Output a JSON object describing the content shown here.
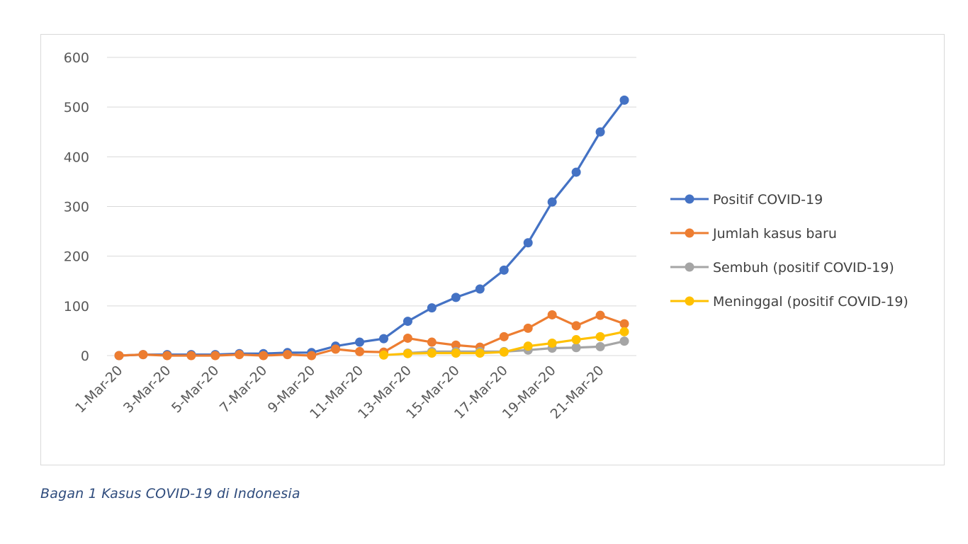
{
  "caption": "Bagan 1 Kasus COVID-19 di Indonesia",
  "chart_data": {
    "type": "line",
    "title": "",
    "xlabel": "",
    "ylabel": "",
    "ylim": [
      0,
      600
    ],
    "yticks": [
      0,
      100,
      200,
      300,
      400,
      500,
      600
    ],
    "grid": true,
    "legend_position": "right",
    "categories": [
      "1-Mar-20",
      "2-Mar-20",
      "3-Mar-20",
      "4-Mar-20",
      "5-Mar-20",
      "6-Mar-20",
      "7-Mar-20",
      "8-Mar-20",
      "9-Mar-20",
      "10-Mar-20",
      "11-Mar-20",
      "12-Mar-20",
      "13-Mar-20",
      "14-Mar-20",
      "15-Mar-20",
      "16-Mar-20",
      "17-Mar-20",
      "18-Mar-20",
      "19-Mar-20",
      "20-Mar-20",
      "21-Mar-20",
      "22-Mar-20"
    ],
    "tick_labels": [
      "1-Mar-20",
      "3-Mar-20",
      "5-Mar-20",
      "7-Mar-20",
      "9-Mar-20",
      "11-Mar-20",
      "13-Mar-20",
      "15-Mar-20",
      "17-Mar-20",
      "19-Mar-20",
      "21-Mar-20"
    ],
    "series": [
      {
        "name": "Positif COVID-19",
        "color": "#4472c4",
        "values": [
          0,
          2,
          2,
          2,
          2,
          4,
          4,
          6,
          6,
          19,
          27,
          34,
          69,
          96,
          117,
          134,
          172,
          227,
          309,
          369,
          450,
          514
        ]
      },
      {
        "name": "Jumlah kasus baru",
        "color": "#ed7d31",
        "values": [
          0,
          2,
          0,
          0,
          0,
          2,
          0,
          2,
          0,
          13,
          8,
          7,
          35,
          27,
          21,
          17,
          38,
          55,
          82,
          60,
          81,
          64
        ]
      },
      {
        "name": "Sembuh (positif COVID-19)",
        "color": "#a5a5a5",
        "values": [
          null,
          null,
          null,
          null,
          null,
          null,
          null,
          null,
          null,
          null,
          null,
          null,
          5,
          8,
          8,
          8,
          8,
          11,
          15,
          16,
          18,
          29
        ]
      },
      {
        "name": "Meninggal (positif COVID-19)",
        "color": "#ffc000",
        "values": [
          null,
          null,
          null,
          null,
          null,
          null,
          null,
          null,
          null,
          null,
          null,
          1,
          4,
          5,
          5,
          5,
          7,
          19,
          25,
          32,
          38,
          48
        ]
      }
    ]
  }
}
